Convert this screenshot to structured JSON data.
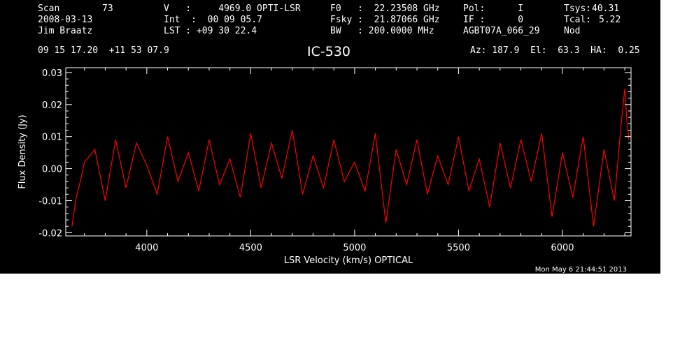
{
  "header": {
    "scan_label": "Scan",
    "scan_value": "73",
    "date": "2008-03-13",
    "observer": "Jim Braatz",
    "coords": "09 15 17.20  +11 53 07.9",
    "v_line": "V   :     4969.0 OPTI-LSR",
    "int_line": "Int  :  00 09 05.7",
    "lst_line": "LST : +09 30 22.4",
    "f0_line": "F0   :  22.23508 GHz",
    "fsky_line": "Fsky :  21.87066 GHz",
    "bw_line": "BW   : 200.0000 MHz",
    "pol_line": "Pol:      I",
    "if_line": "IF :      0",
    "project": "AGBT07A_066_29",
    "tsys_label": "Tsys:",
    "tsys_value": "40.31",
    "tcal_label": "Tcal:",
    "tcal_value": "5.22",
    "mode": "Nod",
    "pointing": "Az: 187.9  El:  63.3  HA:  0.25",
    "source": "IC-530",
    "timestamp": "Mon May  6 21:44:51 2013"
  },
  "colors": {
    "background": "#000000",
    "axes": "#ffffff",
    "trace": "#ff0000"
  },
  "chart_data": {
    "type": "line",
    "title": "IC-530",
    "xlabel": "LSR Velocity (km/s) OPTICAL",
    "ylabel": "Flux Density (Jy)",
    "xlim": [
      3610,
      6330
    ],
    "ylim": [
      -0.021,
      0.0315
    ],
    "x_ticks": [
      4000,
      4500,
      5000,
      5500,
      6000
    ],
    "x_tick_labels": [
      "4000",
      "4500",
      "5000",
      "5500",
      "6000"
    ],
    "y_ticks": [
      -0.02,
      -0.01,
      0.0,
      0.01,
      0.02,
      0.03
    ],
    "y_tick_labels": [
      "-0.02",
      "-0.01",
      "0.00",
      "0.01",
      "0.02",
      "0.03"
    ],
    "grid": false,
    "legend": "none",
    "series": [
      {
        "color": "#ff0000",
        "x": [
          3640,
          3660,
          3680,
          3700,
          3750,
          3800,
          3850,
          3900,
          3950,
          4000,
          4050,
          4100,
          4150,
          4200,
          4250,
          4300,
          4350,
          4400,
          4450,
          4500,
          4550,
          4600,
          4650,
          4700,
          4750,
          4800,
          4850,
          4900,
          4950,
          5000,
          5050,
          5100,
          5150,
          5200,
          5250,
          5300,
          5350,
          5400,
          5450,
          5500,
          5550,
          5600,
          5650,
          5700,
          5750,
          5800,
          5850,
          5900,
          5950,
          6000,
          6050,
          6100,
          6150,
          6200,
          6250,
          6280,
          6300,
          6310,
          6320
        ],
        "y": [
          -0.018,
          -0.009,
          -0.004,
          0.002,
          0.006,
          -0.01,
          0.009,
          -0.006,
          0.008,
          0.001,
          -0.008,
          0.01,
          -0.004,
          0.005,
          -0.007,
          0.009,
          -0.005,
          0.003,
          -0.009,
          0.011,
          -0.006,
          0.008,
          -0.003,
          0.012,
          -0.008,
          0.004,
          -0.006,
          0.009,
          -0.004,
          0.002,
          -0.007,
          0.011,
          -0.017,
          0.006,
          -0.005,
          0.009,
          -0.008,
          0.004,
          -0.005,
          0.01,
          -0.007,
          0.003,
          -0.012,
          0.008,
          -0.006,
          0.009,
          -0.004,
          0.011,
          -0.015,
          0.005,
          -0.009,
          0.01,
          -0.018,
          0.006,
          -0.01,
          0.012,
          0.025,
          0.015,
          0.009
        ]
      }
    ]
  }
}
